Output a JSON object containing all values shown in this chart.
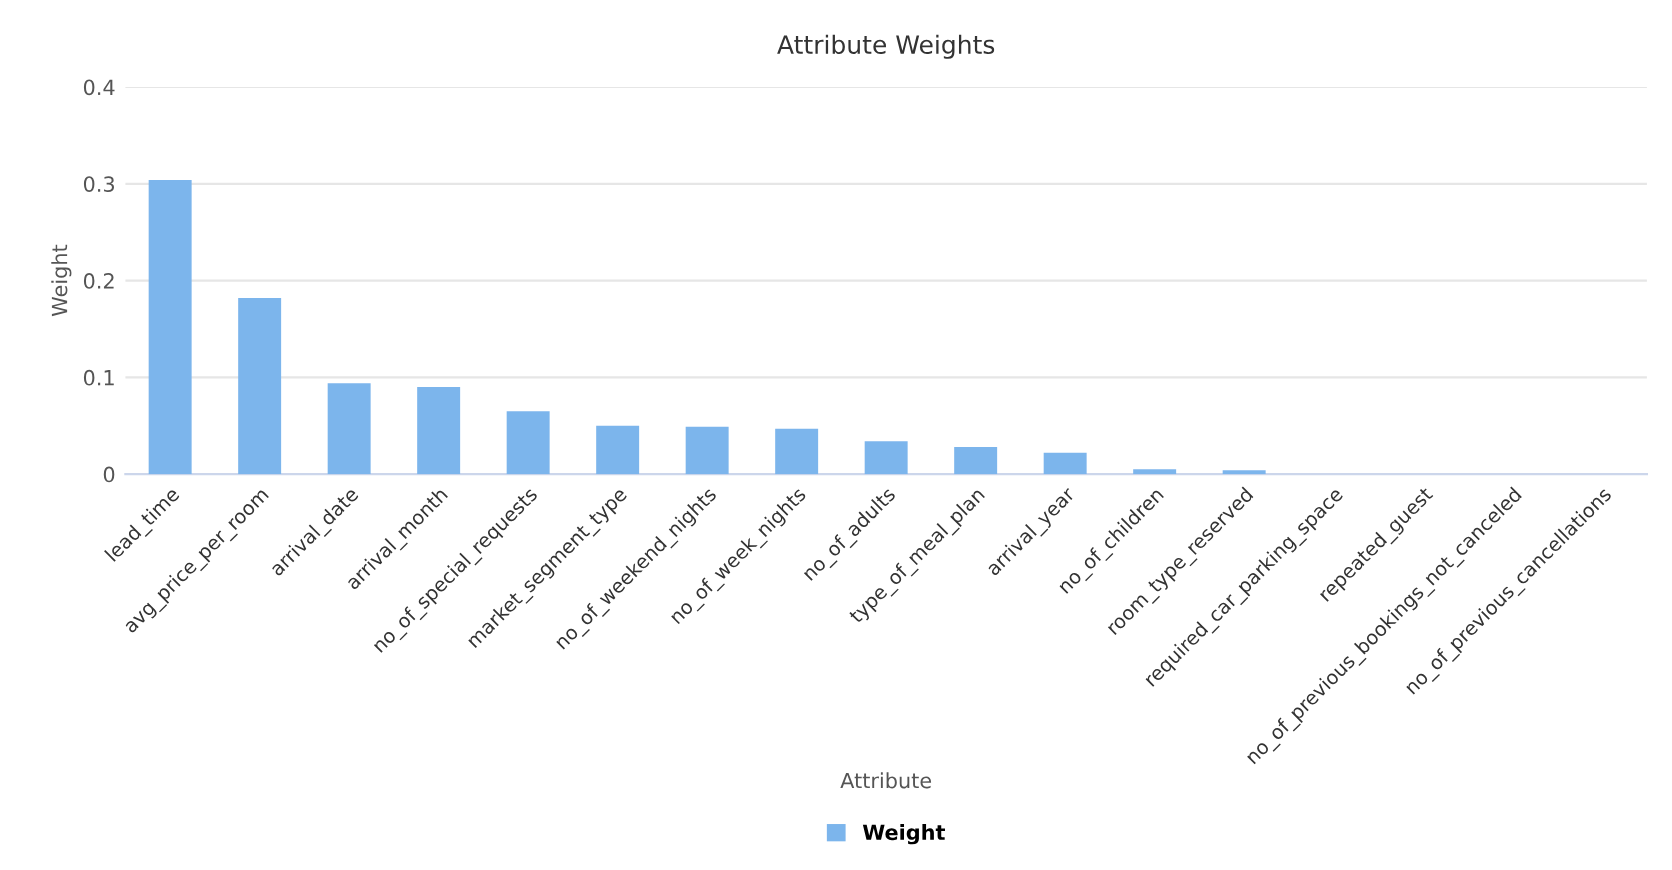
{
  "chart_data": {
    "type": "bar",
    "title": "Attribute Weights",
    "xlabel": "Attribute",
    "ylabel": "Weight",
    "categories": [
      "lead_time",
      "avg_price_per_room",
      "arrival_date",
      "arrival_month",
      "no_of_special_requests",
      "market_segment_type",
      "no_of_weekend_nights",
      "no_of_week_nights",
      "no_of_adults",
      "type_of_meal_plan",
      "arrival_year",
      "no_of_children",
      "room_type_reserved",
      "required_car_parking_space",
      "repeated_guest",
      "no_of_previous_bookings_not_canceled",
      "no_of_previous_cancellations"
    ],
    "series": [
      {
        "name": "Weight",
        "color": "#7cb5ec",
        "values": [
          0.304,
          0.182,
          0.094,
          0.09,
          0.065,
          0.05,
          0.049,
          0.047,
          0.034,
          0.028,
          0.022,
          0.005,
          0.004,
          0,
          0,
          0,
          0
        ]
      }
    ],
    "ylim": [
      0,
      0.4
    ],
    "yticks": [
      {
        "value": 0,
        "label": "0"
      },
      0.1,
      0.2,
      0.3,
      0.4
    ],
    "grid": "y",
    "legend": "bottom"
  }
}
